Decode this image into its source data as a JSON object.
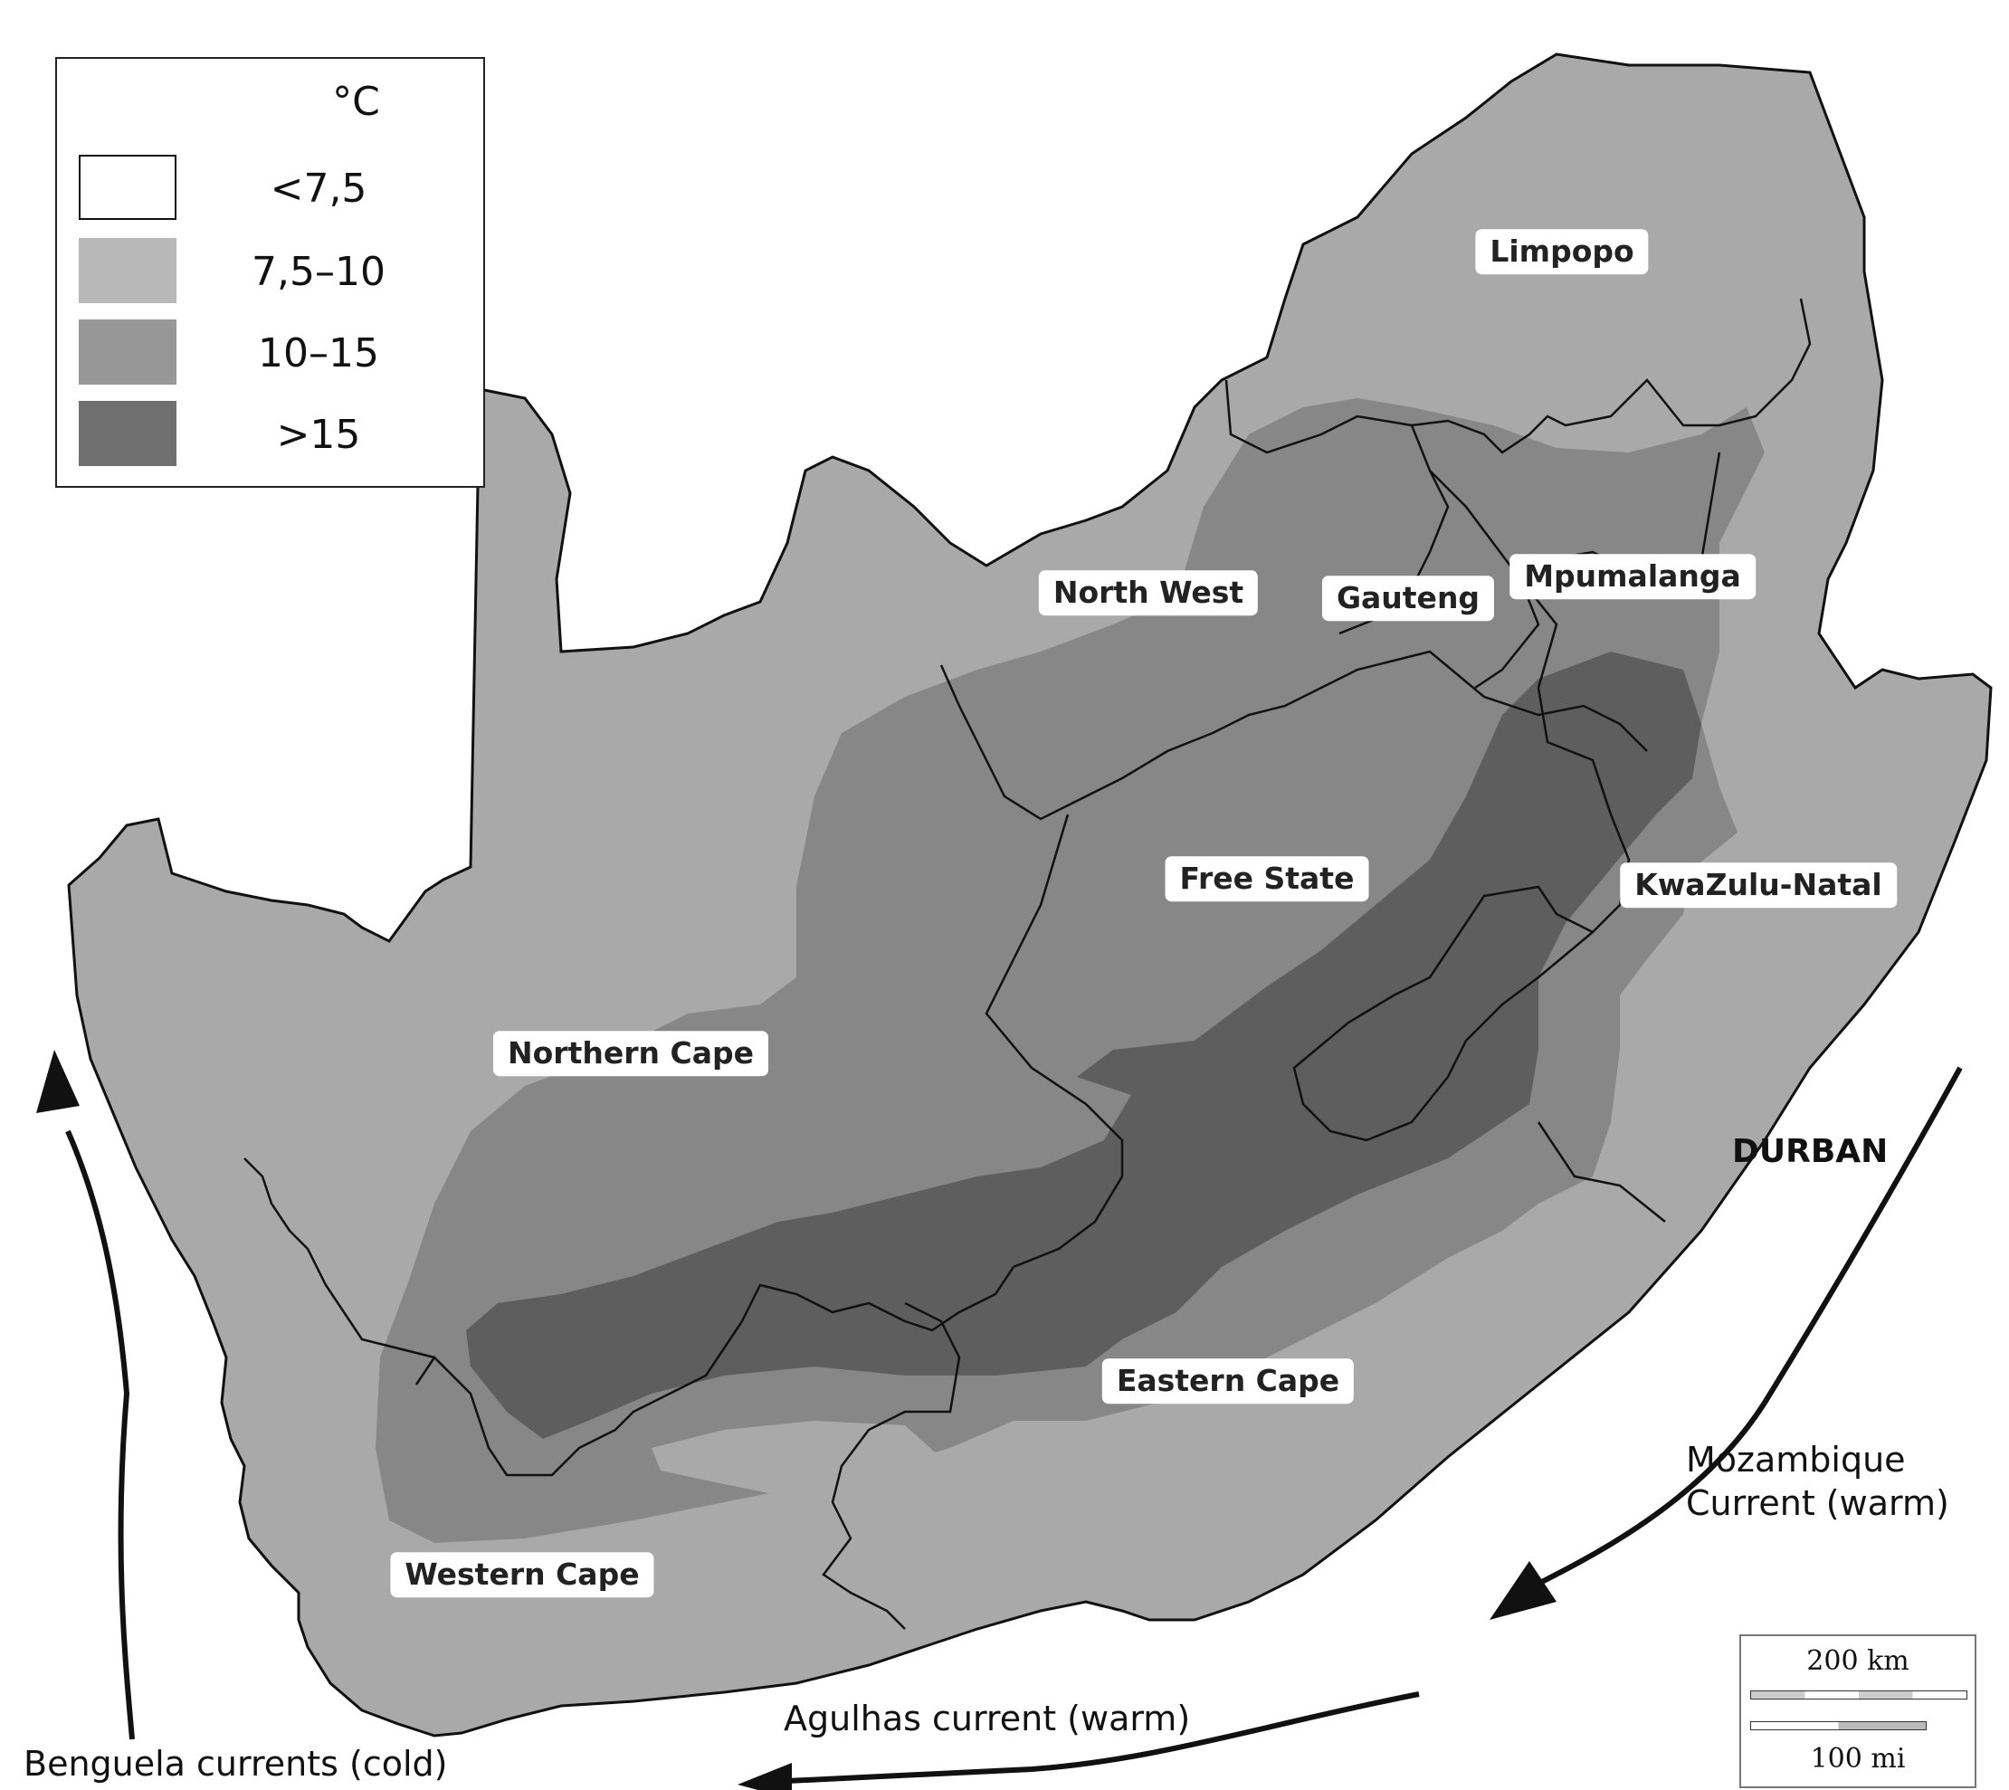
{
  "legend": {
    "unit": "°C",
    "items": [
      {
        "label": "<7,5",
        "color": "#ffffff"
      },
      {
        "label": "7,5–10",
        "color": "#b8b8b8"
      },
      {
        "label": "10–15",
        "color": "#979797"
      },
      {
        "label": ">15",
        "color": "#707070"
      }
    ]
  },
  "provinces": {
    "limpopo": "Limpopo",
    "north_west": "North West",
    "gauteng": "Gauteng",
    "mpumalanga": "Mpumalanga",
    "free_state": "Free State",
    "kwazulu_natal": "KwaZulu-Natal",
    "northern_cape": "Northern Cape",
    "eastern_cape": "Eastern Cape",
    "western_cape": "Western Cape"
  },
  "cities": {
    "durban": "DURBAN"
  },
  "currents": {
    "mozambique_line1": "Mozambique",
    "mozambique_line2": "Current (warm)",
    "agulhas": "Agulhas current (warm)",
    "benguela": "Benguela currents (cold)"
  },
  "scale": {
    "km_label": "200 km",
    "mi_label": "100 mi"
  },
  "colors": {
    "base_land": "#a9a9a9",
    "zone_10_15": "#878787",
    "zone_gt15": "#5e5e5e",
    "outline": "#111111"
  }
}
